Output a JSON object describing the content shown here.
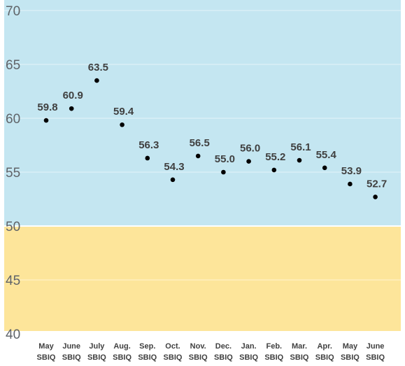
{
  "chart_data": {
    "type": "scatter",
    "categories": [
      [
        "May",
        "SBIQ"
      ],
      [
        "June",
        "SBIQ"
      ],
      [
        "July",
        "SBIQ"
      ],
      [
        "Aug.",
        "SBIQ"
      ],
      [
        "Sep.",
        "SBIQ"
      ],
      [
        "Oct.",
        "SBIQ"
      ],
      [
        "Nov.",
        "SBIQ"
      ],
      [
        "Dec.",
        "SBIQ"
      ],
      [
        "Jan.",
        "SBIQ"
      ],
      [
        "Feb.",
        "SBIQ"
      ],
      [
        "Mar.",
        "SBIQ"
      ],
      [
        "Apr.",
        "SBIQ"
      ],
      [
        "May",
        "SBIQ"
      ],
      [
        "June",
        "SBIQ"
      ]
    ],
    "values": [
      59.8,
      60.9,
      63.5,
      59.4,
      56.3,
      54.3,
      56.5,
      55.0,
      56.0,
      55.2,
      56.1,
      55.4,
      53.9,
      52.7
    ],
    "data_labels": [
      "59.8",
      "60.9",
      "63.5",
      "59.4",
      "56.3",
      "54.3",
      "56.5",
      "55.0",
      "56.0",
      "55.2",
      "56.1",
      "55.4",
      "53.9",
      "52.7"
    ],
    "ylim": [
      40,
      70
    ],
    "yticks": [
      40,
      45,
      50,
      55,
      60,
      65,
      70
    ],
    "bands": [
      {
        "from": 50,
        "to": 70,
        "color": "#c4e6f1"
      },
      {
        "from": 40,
        "to": 50,
        "color": "#fde59a"
      }
    ],
    "divider_at": 50,
    "grid": true,
    "point_color": "#000000",
    "title": "",
    "xlabel": "",
    "ylabel": ""
  }
}
